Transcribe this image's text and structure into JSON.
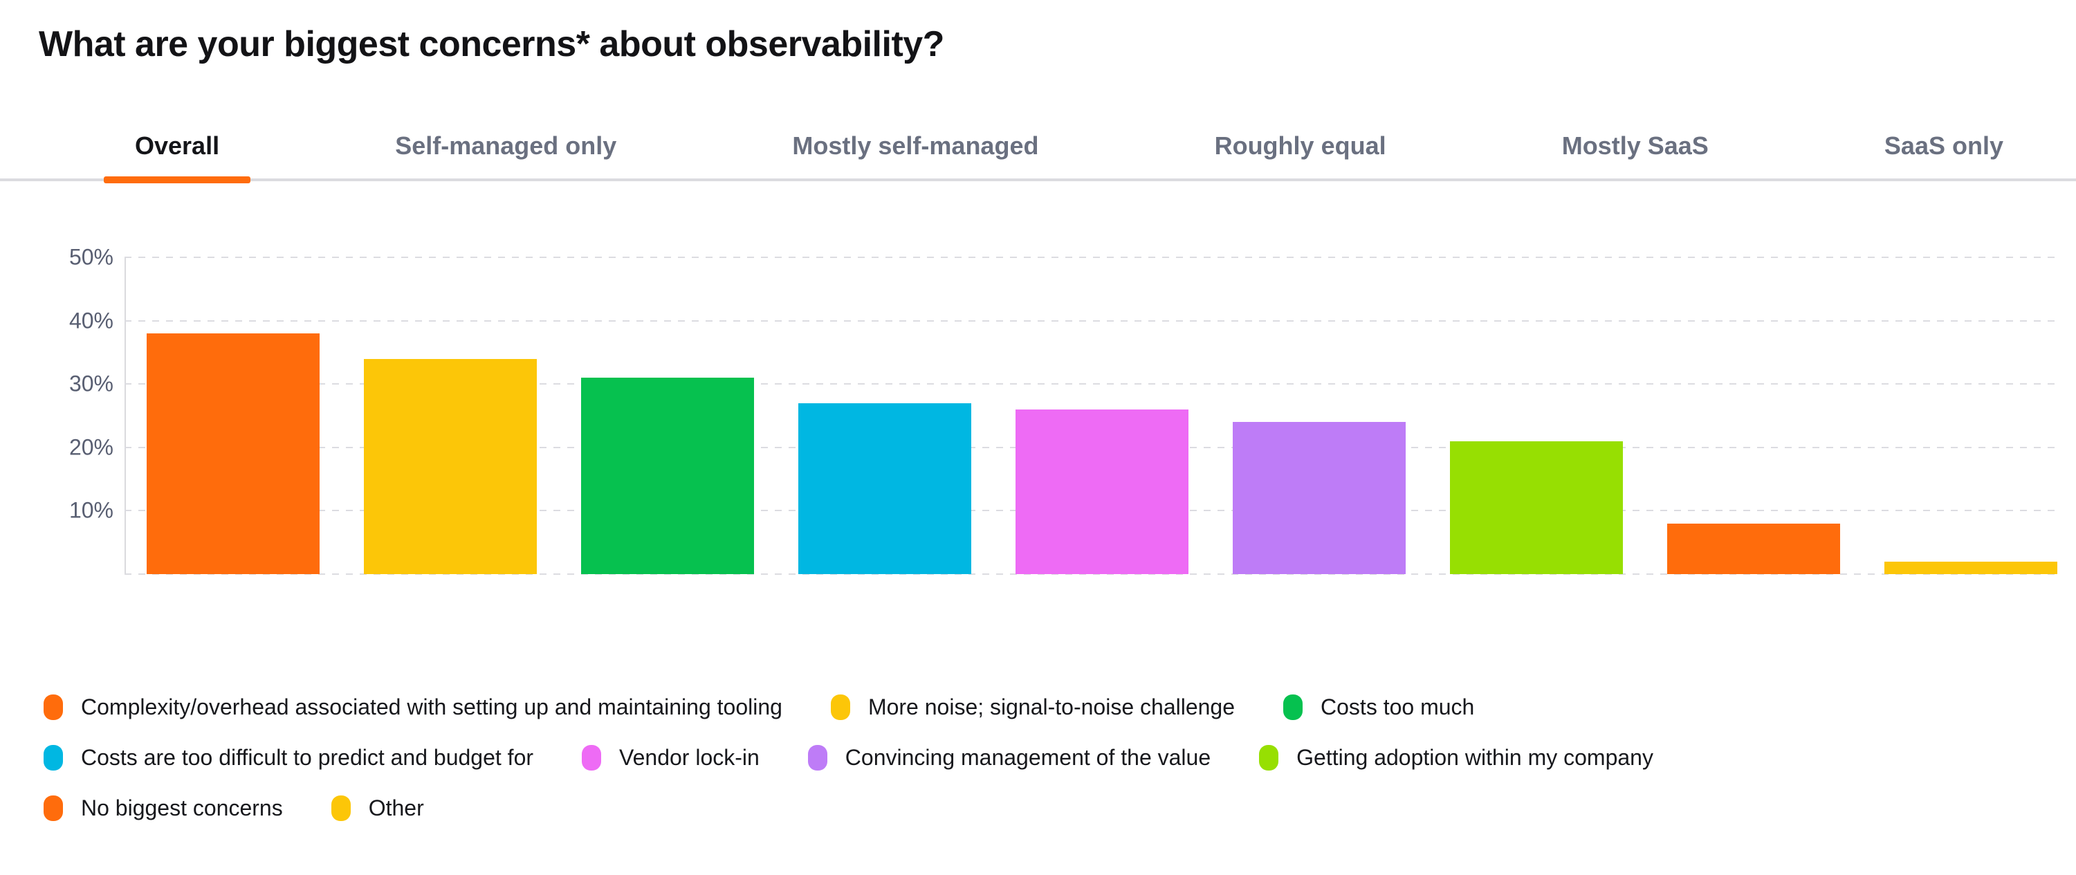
{
  "title": "What are your biggest concerns* about observability?",
  "tabs": {
    "active_index": 0,
    "accent_color": "#ff6c0c",
    "items": [
      "Overall",
      "Self-managed only",
      "Mostly self-managed",
      "Roughly equal",
      "Mostly SaaS",
      "SaaS only"
    ]
  },
  "chart_data": {
    "type": "bar",
    "title": "What are your biggest concerns* about observability?",
    "xlabel": "",
    "ylabel": "",
    "ylim": [
      0,
      50
    ],
    "yticks": [
      50,
      40,
      30,
      20,
      10
    ],
    "ytick_labels": [
      "50%",
      "40%",
      "30%",
      "20%",
      "10%"
    ],
    "grid": "horizontal-dashed",
    "legend_position": "bottom",
    "unit": "%",
    "categories": [
      "Complexity/overhead associated with setting up and maintaining tooling",
      "More noise; signal-to-noise challenge",
      "Costs too much",
      "Costs are too difficult to predict and budget for",
      "Vendor lock-in",
      "Convincing management of the value",
      "Getting adoption within my company",
      "No biggest concerns",
      "Other"
    ],
    "values": [
      38,
      34,
      31,
      27,
      26,
      24,
      21,
      8,
      2
    ],
    "colors": [
      "#ff6c0c",
      "#fcc608",
      "#06c14f",
      "#00b7e2",
      "#ee6bf5",
      "#be7cf7",
      "#97df02",
      "#ff6c0c",
      "#fcc608"
    ]
  },
  "legend": {
    "rows": [
      [
        0,
        1,
        2
      ],
      [
        3,
        4,
        5,
        6
      ],
      [
        7,
        8
      ]
    ]
  }
}
